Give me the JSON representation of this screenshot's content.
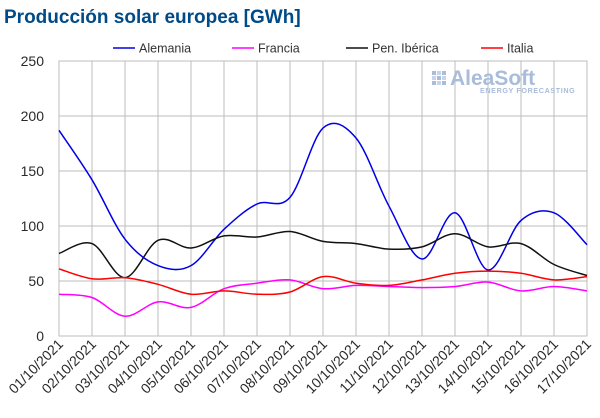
{
  "chart_data": {
    "type": "line",
    "title": "Producción solar europea [GWh]",
    "xlabel": "",
    "ylabel": "",
    "ylim": [
      0,
      250
    ],
    "yticks": [
      0,
      50,
      100,
      150,
      200,
      250
    ],
    "grid": true,
    "legend_position": "top",
    "categories": [
      "01/10/2021",
      "02/10/2021",
      "03/10/2021",
      "04/10/2021",
      "05/10/2021",
      "06/10/2021",
      "07/10/2021",
      "08/10/2021",
      "09/10/2021",
      "10/10/2021",
      "11/10/2021",
      "12/10/2021",
      "13/10/2021",
      "14/10/2021",
      "15/10/2021",
      "16/10/2021",
      "17/10/2021"
    ],
    "series": [
      {
        "name": "Alemania",
        "color": "#0000e6",
        "values": [
          187,
          142,
          88,
          64,
          64,
          97,
          120,
          126,
          189,
          180,
          118,
          70,
          112,
          60,
          105,
          112,
          83
        ]
      },
      {
        "name": "Francia",
        "color": "#ff00ff",
        "values": [
          38,
          35,
          18,
          31,
          26,
          43,
          48,
          51,
          43,
          46,
          45,
          44,
          45,
          49,
          41,
          45,
          41
        ]
      },
      {
        "name": "Pen. Ibérica",
        "color": "#111111",
        "values": [
          75,
          84,
          53,
          87,
          80,
          91,
          90,
          95,
          86,
          84,
          79,
          81,
          93,
          81,
          84,
          65,
          55
        ]
      },
      {
        "name": "Italia",
        "color": "#ff0000",
        "values": [
          61,
          52,
          53,
          47,
          38,
          41,
          38,
          40,
          54,
          48,
          46,
          51,
          57,
          59,
          57,
          51,
          54
        ]
      }
    ]
  },
  "logo": {
    "name": "AleaSoft",
    "tagline": "ENERGY FORECASTING"
  }
}
